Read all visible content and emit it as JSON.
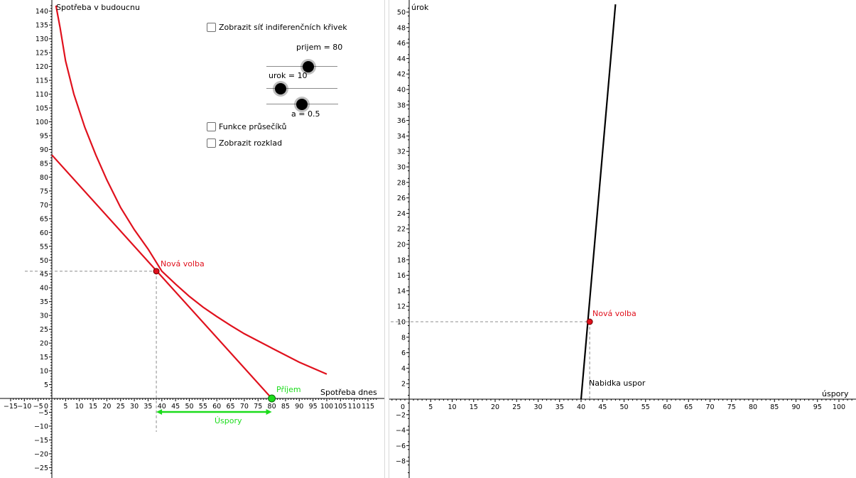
{
  "left": {
    "y_axis_title": "Spotřeba v budoucnu",
    "x_axis_title": "Spotřeba dnes",
    "x_ticks": [
      "−15",
      "−10",
      "−5",
      "5",
      "10",
      "15",
      "20",
      "25",
      "30",
      "35",
      "40",
      "45",
      "50",
      "55",
      "60",
      "65",
      "70",
      "75",
      "80",
      "85",
      "90",
      "95",
      "100",
      "105",
      "110",
      "115"
    ],
    "y_ticks": [
      "−25",
      "−20",
      "−15",
      "−10",
      "−5",
      "5",
      "10",
      "15",
      "20",
      "25",
      "30",
      "35",
      "40",
      "45",
      "50",
      "55",
      "60",
      "65",
      "70",
      "75",
      "80",
      "85",
      "90",
      "95",
      "100",
      "105",
      "110",
      "115",
      "120",
      "125",
      "130",
      "135",
      "140"
    ],
    "origin_label": "0",
    "point_label": "Nová volba",
    "income_label": "Příjem",
    "savings_label": "Úspory",
    "colors": {
      "curve": "#e0111d",
      "income": "#1bdc1b",
      "dash": "#8c8c8c"
    }
  },
  "controls": {
    "checkbox_grid": "Zobrazit síť indiferenčních křivek",
    "checkbox_intersections": "Funkce průsečíků",
    "checkbox_decomposition": "Zobrazit rozklad",
    "sliders": [
      {
        "label": "prijem = 80",
        "value": 80
      },
      {
        "label": "urok = 10",
        "value": 10
      },
      {
        "label": "a = 0.5",
        "value": 0.5
      }
    ]
  },
  "right": {
    "y_axis_title": "úrok",
    "x_axis_title": "úspory",
    "x_ticks": [
      "5",
      "10",
      "15",
      "20",
      "25",
      "30",
      "35",
      "40",
      "45",
      "50",
      "55",
      "60",
      "65",
      "70",
      "75",
      "80",
      "85",
      "90",
      "95",
      "100"
    ],
    "y_ticks": [
      "−8",
      "−6",
      "−4",
      "−2",
      "2",
      "4",
      "6",
      "8",
      "10",
      "12",
      "14",
      "16",
      "18",
      "20",
      "22",
      "24",
      "26",
      "28",
      "30",
      "32",
      "34",
      "36",
      "38",
      "40",
      "42",
      "44",
      "46",
      "48",
      "50"
    ],
    "origin_label": "0",
    "point_label": "Nová volba",
    "supply_label": "Nabidka uspor"
  },
  "chart_data": [
    {
      "type": "line",
      "title": "",
      "xlabel": "Spotřeba dnes",
      "ylabel": "Spotřeba v budoucnu",
      "xlim": [
        -17,
        120
      ],
      "ylim": [
        -28,
        142
      ],
      "grid": false,
      "series": [
        {
          "x": [
            0,
            80
          ],
          "y": [
            88,
            0
          ]
        },
        {
          "x": [
            1.5,
            3,
            5,
            8,
            12,
            16,
            20,
            25,
            30,
            35,
            40,
            45,
            50,
            55,
            60,
            65,
            70,
            80,
            90,
            100
          ],
          "y": [
            142,
            134,
            122,
            110,
            98,
            88,
            79,
            69,
            61,
            54,
            46,
            41.3,
            36.9,
            33,
            29.6,
            26.4,
            23.4,
            18.2,
            13.1,
            8.8
          ]
        }
      ],
      "points": [
        {
          "label": "Nová volba",
          "x": 38,
          "y": 46
        },
        {
          "label": "Příjem",
          "x": 80,
          "y": 0
        }
      ],
      "annotations": [
        {
          "label": "Úspory",
          "from_x": 38,
          "to_x": 80,
          "y": -5
        }
      ]
    },
    {
      "type": "line",
      "title": "",
      "xlabel": "úspory",
      "ylabel": "úrok",
      "xlim": [
        -4,
        103
      ],
      "ylim": [
        -10,
        51
      ],
      "grid": false,
      "series": [
        {
          "name": "Nabidka uspor",
          "x": [
            40,
            48
          ],
          "y": [
            0,
            51
          ]
        }
      ],
      "points": [
        {
          "label": "Nová volba",
          "x": 42,
          "y": 10
        }
      ]
    }
  ]
}
